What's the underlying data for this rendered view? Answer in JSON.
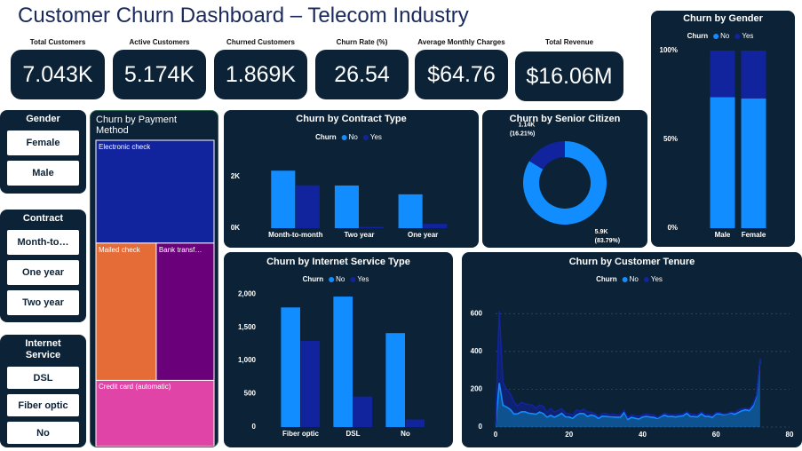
{
  "header": {
    "title": "Customer Churn Dashboard – Telecom Industry"
  },
  "kpis": [
    {
      "label": "Total Customers",
      "value": "7.043K"
    },
    {
      "label": "Active Customers",
      "value": "5.174K"
    },
    {
      "label": "Churned Customers",
      "value": "1.869K"
    },
    {
      "label": "Churn Rate (%)",
      "value": "26.54"
    },
    {
      "label": "Average Monthly Charges",
      "value": "$64.76"
    },
    {
      "label": "Total Revenue",
      "value": "$16.06M"
    }
  ],
  "slicers": [
    {
      "title": "Gender",
      "items": [
        "Female",
        "Male"
      ]
    },
    {
      "title": "Contract",
      "items": [
        "Month-to…",
        "One year",
        "Two year"
      ]
    },
    {
      "title": "Internet Service",
      "items": [
        "DSL",
        "Fiber optic",
        "No"
      ]
    }
  ],
  "chart_data": [
    {
      "type": "bar",
      "stacked": true,
      "title": "Churn by Gender",
      "legend_title": "Churn",
      "categories": [
        "Male",
        "Female"
      ],
      "series": [
        {
          "name": "No",
          "color": "#118dff",
          "values": [
            73.8,
            73.1
          ]
        },
        {
          "name": "Yes",
          "color": "#12239e",
          "values": [
            26.2,
            26.9
          ]
        }
      ],
      "ylim": [
        0,
        100
      ],
      "yticks": [
        {
          "value": 0,
          "label": "0%"
        },
        {
          "value": 50,
          "label": "50%"
        },
        {
          "value": 100,
          "label": "100%"
        }
      ],
      "grid": false
    },
    {
      "type": "treemap",
      "title": "Churn by Payment Method",
      "categories": [
        "Electronic check",
        "Mailed check",
        "Bank transf…",
        "Credit card (automatic)"
      ],
      "values": [
        2365,
        1612,
        1544,
        1522
      ],
      "colors": [
        "#12239e",
        "#e66c37",
        "#6b007b",
        "#e044a7"
      ]
    },
    {
      "type": "bar",
      "stacked": false,
      "title": "Churn by Contract Type",
      "legend_title": "Churn",
      "categories": [
        "Month-to-month",
        "Two year",
        "One year"
      ],
      "series": [
        {
          "name": "No",
          "color": "#118dff",
          "values": [
            2220,
            1647,
            1307
          ]
        },
        {
          "name": "Yes",
          "color": "#12239e",
          "values": [
            1655,
            48,
            166
          ]
        }
      ],
      "ylim": [
        0,
        2400
      ],
      "yticks": [
        {
          "value": 0,
          "label": "0K"
        },
        {
          "value": 2000,
          "label": "2K"
        }
      ],
      "grid": false
    },
    {
      "type": "pie",
      "donut": true,
      "title": "Churn by Senior Citizen",
      "values": [
        5901,
        1142
      ],
      "value_labels": [
        "5.9K",
        "1.14K"
      ],
      "percent_labels": [
        "(83.79%)",
        "(16.21%)"
      ],
      "colors": [
        "#118dff",
        "#12239e"
      ]
    },
    {
      "type": "bar",
      "stacked": false,
      "title": "Churn by Internet Service Type",
      "legend_title": "Churn",
      "categories": [
        "Fiber optic",
        "DSL",
        "No"
      ],
      "series": [
        {
          "name": "No",
          "color": "#118dff",
          "values": [
            1799,
            1962,
            1413
          ]
        },
        {
          "name": "Yes",
          "color": "#12239e",
          "values": [
            1297,
            459,
            113
          ]
        }
      ],
      "ylim": [
        0,
        2150
      ],
      "yticks": [
        0,
        500,
        {
          "value": 1000,
          "label": "1,000"
        },
        {
          "value": 1500,
          "label": "1,500"
        },
        {
          "value": 2000,
          "label": "2,000"
        }
      ],
      "grid": false
    },
    {
      "type": "area",
      "stacked": true,
      "title": "Churn by Customer Tenure",
      "legend_title": "Churn",
      "x": [
        0,
        1,
        2,
        3,
        4,
        5,
        6,
        7,
        8,
        9,
        10,
        11,
        12,
        13,
        14,
        15,
        16,
        17,
        18,
        19,
        20,
        21,
        22,
        23,
        24,
        25,
        26,
        27,
        28,
        29,
        30,
        31,
        32,
        33,
        34,
        35,
        36,
        37,
        38,
        39,
        40,
        41,
        42,
        43,
        44,
        45,
        46,
        47,
        48,
        49,
        50,
        51,
        52,
        53,
        54,
        55,
        56,
        57,
        58,
        59,
        60,
        61,
        62,
        63,
        64,
        65,
        66,
        67,
        68,
        69,
        70,
        71,
        72
      ],
      "series": [
        {
          "name": "No",
          "color": "#118dff",
          "values": [
            11,
            233,
            115,
            106,
            93,
            69,
            70,
            80,
            81,
            73,
            71,
            68,
            79,
            71,
            52,
            62,
            52,
            61,
            73,
            54,
            53,
            46,
            63,
            72,
            71,
            56,
            64,
            59,
            45,
            57,
            56,
            54,
            53,
            52,
            52,
            77,
            40,
            51,
            46,
            42,
            53,
            56,
            53,
            51,
            45,
            55,
            63,
            55,
            56,
            53,
            57,
            59,
            73,
            56,
            55,
            54,
            70,
            56,
            56,
            51,
            70,
            70,
            65,
            68,
            76,
            67,
            76,
            86,
            91,
            87,
            108,
            164,
            356
          ]
        },
        {
          "name": "Yes",
          "color": "#12239e",
          "values": [
            0,
            380,
            123,
            94,
            83,
            64,
            40,
            51,
            42,
            46,
            45,
            31,
            38,
            38,
            24,
            37,
            28,
            26,
            24,
            19,
            18,
            17,
            27,
            13,
            23,
            23,
            15,
            13,
            12,
            15,
            16,
            11,
            16,
            12,
            13,
            11,
            10,
            14,
            13,
            14,
            11,
            14,
            12,
            14,
            6,
            6,
            11,
            13,
            8,
            13,
            11,
            9,
            7,
            14,
            13,
            10,
            10,
            9,
            11,
            9,
            6,
            6,
            5,
            4,
            4,
            9,
            13,
            12,
            9,
            8,
            11,
            6,
            6
          ]
        }
      ],
      "xlim": [
        0,
        80
      ],
      "xticks": [
        0,
        20,
        40,
        60,
        80
      ],
      "ylim": [
        0,
        700
      ],
      "yticks": [
        0,
        200,
        400,
        600
      ],
      "grid": true
    }
  ]
}
